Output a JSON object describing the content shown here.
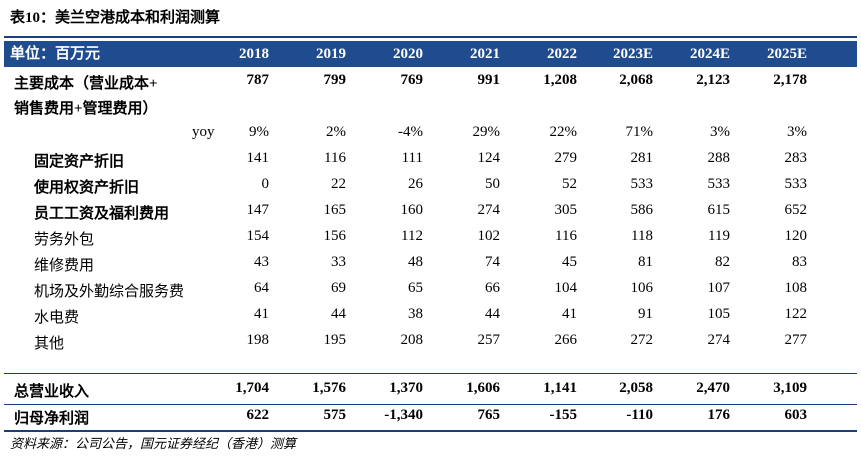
{
  "title": "表10：美兰空港成本和利润测算",
  "header": {
    "unit_label": "单位：百万元",
    "years": [
      "2018",
      "2019",
      "2020",
      "2021",
      "2022",
      "2023E",
      "2024E",
      "2025E"
    ]
  },
  "main_cost": {
    "label_line1": "主要成本（营业成本+",
    "label_line2": "销售费用+管理费用）",
    "values": [
      "787",
      "799",
      "769",
      "991",
      "1,208",
      "2,068",
      "2,123",
      "2,178"
    ]
  },
  "yoy": {
    "label": "yoy",
    "values": [
      "9%",
      "2%",
      "-4%",
      "29%",
      "22%",
      "71%",
      "3%",
      "3%"
    ]
  },
  "detail_rows": [
    {
      "label": "固定资产折旧",
      "values": [
        "141",
        "116",
        "111",
        "124",
        "279",
        "281",
        "288",
        "283"
      ]
    },
    {
      "label": "使用权资产折旧",
      "values": [
        "0",
        "22",
        "26",
        "50",
        "52",
        "533",
        "533",
        "533"
      ]
    },
    {
      "label": "员工工资及福利费用",
      "values": [
        "147",
        "165",
        "160",
        "274",
        "305",
        "586",
        "615",
        "652"
      ]
    },
    {
      "label": "劳务外包",
      "values": [
        "154",
        "156",
        "112",
        "102",
        "116",
        "118",
        "119",
        "120"
      ]
    },
    {
      "label": "维修费用",
      "values": [
        "43",
        "33",
        "48",
        "74",
        "45",
        "81",
        "82",
        "83"
      ]
    },
    {
      "label": "机场及外勤综合服务费",
      "values": [
        "64",
        "69",
        "65",
        "66",
        "104",
        "106",
        "107",
        "108"
      ]
    },
    {
      "label": "水电费",
      "values": [
        "41",
        "44",
        "38",
        "44",
        "41",
        "91",
        "105",
        "122"
      ]
    },
    {
      "label": "其他",
      "values": [
        "198",
        "195",
        "208",
        "257",
        "266",
        "272",
        "274",
        "277"
      ]
    }
  ],
  "revenue": {
    "label": "总营业收入",
    "values": [
      "1,704",
      "1,576",
      "1,370",
      "1,606",
      "1,141",
      "2,058",
      "2,470",
      "3,109"
    ]
  },
  "net_profit": {
    "label": "归母净利润",
    "values": [
      "622",
      "575",
      "-1,340",
      "765",
      "-155",
      "-110",
      "176",
      "603"
    ]
  },
  "source": "资料来源：公司公告，国元证券经纪（香港）测算"
}
